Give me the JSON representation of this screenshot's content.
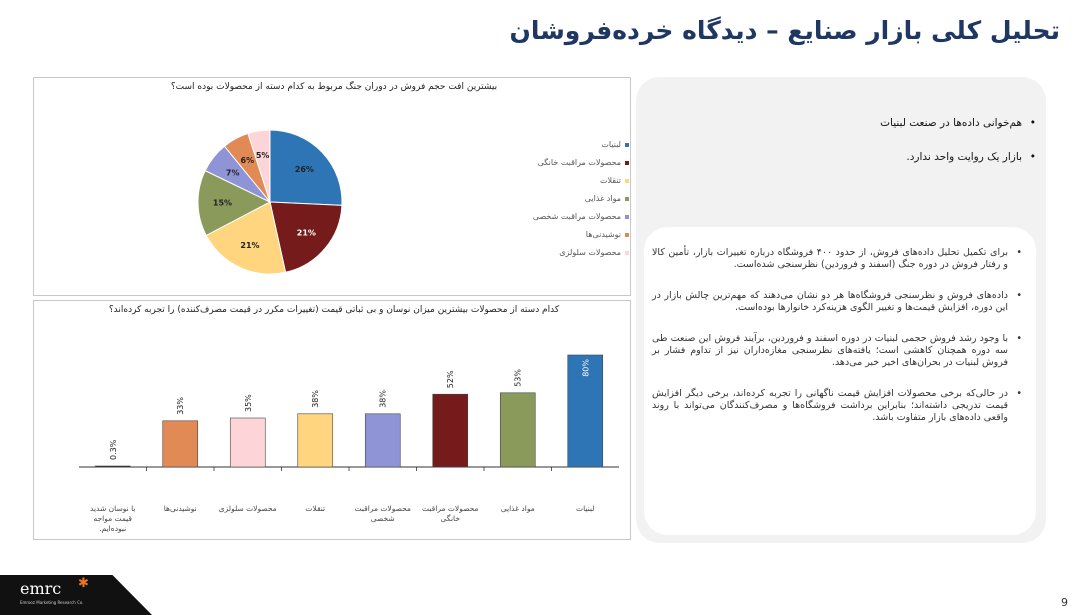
{
  "page": {
    "title": "تحلیل کلی بازار صنایع – دیدگاه خرده‌فروشان",
    "page_number": "9"
  },
  "logo": {
    "text": "emrc",
    "subtitle": "Emrooz Marketing Research Co."
  },
  "side_panel": {
    "top_bullets": [
      "هم‌خوانی داده‌ها در صنعت لبنیات",
      "بازار یک روایت واحد ندارد."
    ],
    "body_bullets": [
      "برای تکمیل تحلیل داده‌های فروش، از حدود ۴۰۰ فروشگاه درباره تغییرات بازار، تأمین کالا و رفتار فروش در دوره جنگ (اسفند و فروردین) نظرسنجی شده‌است.",
      "داده‌های فروش و نظرسنجی فروشگاه‌ها هر دو نشان می‌دهند که مهم‌ترین چالش بازار در این دوره، افزایش قیمت‌ها و تغییر الگوی هزینه‌کرد خانوارها بوده‌است.",
      "با وجود رشد فروش حجمی لبنیات در دوره اسفند و فروردین، برآیند فروش این صنعت طی سه دوره همچنان کاهشی است؛ یافته‌های نظرسنجی مغازه‌داران نیز از تداوم فشار بر فروش لبنیات در بحران‌های اخیر خبر می‌دهد.",
      "در حالی‌که برخی محصولات افزایش قیمت ناگهانی را تجربه کرده‌اند، برخی دیگر افزایش قیمت تدریجی داشته‌اند؛ بنابراین برداشت فروشگاه‌ها و مصرف‌کنندگان می‌تواند با روند واقعی داده‌های بازار متفاوت باشد."
    ]
  },
  "chart_data": [
    {
      "type": "pie",
      "title": "بیشترین افت حجم فروش در دوران جنگ مربوط به کدام دسته از محصولات بوده است؟",
      "legend_position": "right",
      "slices": [
        {
          "label": "لبنیات",
          "value": 26,
          "value_label": "26%",
          "color": "#2e75b6",
          "label_color": "#222222"
        },
        {
          "label": "محصولات مراقبت خانگی",
          "value": 21,
          "value_label": "21%",
          "color": "#751b1b",
          "label_color": "#ffffff"
        },
        {
          "label": "تنقلات",
          "value": 21,
          "value_label": "21%",
          "color": "#ffd57f",
          "label_color": "#222222"
        },
        {
          "label": "مواد غذایی",
          "value": 15,
          "value_label": "15%",
          "color": "#8a9a5b",
          "label_color": "#222222"
        },
        {
          "label": "محصولات مراقبت شخصی",
          "value": 7,
          "value_label": "7%",
          "color": "#8e94d6",
          "label_color": "#222222"
        },
        {
          "label": "نوشیدنی‌ها",
          "value": 6,
          "value_label": "6%",
          "color": "#e28a55",
          "label_color": "#222222"
        },
        {
          "label": "محصولات سلولزی",
          "value": 5,
          "value_label": "5%",
          "color": "#fdd5d8",
          "label_color": "#222222"
        }
      ]
    },
    {
      "type": "bar",
      "title": "کدام دسته از محصولات بیشترین میزان نوسان و بی ثباتی قیمت (تغییرات مکرر در قیمت مصرف‌کننده) را تجربه کرده‌اند؟",
      "categories": [
        "لبنیات",
        "مواد غذایی",
        "محصولات مراقبت خانگی",
        "محصولات مراقبت شخصی",
        "تنقلات",
        "محصولات سلولزی",
        "نوشیدنی‌ها",
        "با نوسان شدید قیمت مواجه نبوده‌ایم."
      ],
      "values": [
        80,
        53,
        52,
        38,
        38,
        35,
        33,
        0.3
      ],
      "value_labels": [
        "80%",
        "53%",
        "52%",
        "38%",
        "38%",
        "35%",
        "33%",
        "0.3%"
      ],
      "colors": [
        "#2e75b6",
        "#8a9a5b",
        "#751b1b",
        "#8e94d6",
        "#ffd57f",
        "#fdd5d8",
        "#e28a55",
        "#222222"
      ],
      "ylim": [
        0,
        100
      ],
      "grid": false
    }
  ]
}
